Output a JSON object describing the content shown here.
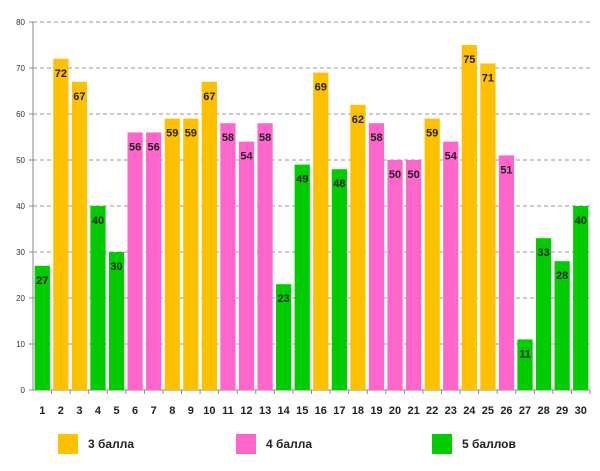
{
  "chart_data": {
    "type": "bar",
    "title": "",
    "xlabel": "",
    "ylabel": "",
    "ylim": [
      0,
      80
    ],
    "yticks": [
      0,
      10,
      20,
      30,
      40,
      50,
      60,
      70,
      80
    ],
    "grid": true,
    "legend_position": "bottom",
    "categories": [
      "1",
      "2",
      "3",
      "4",
      "5",
      "6",
      "7",
      "8",
      "9",
      "10",
      "11",
      "12",
      "13",
      "14",
      "15",
      "16",
      "17",
      "18",
      "19",
      "20",
      "21",
      "22",
      "23",
      "24",
      "25",
      "26",
      "27",
      "28",
      "29",
      "30"
    ],
    "values": [
      27,
      72,
      67,
      40,
      30,
      56,
      56,
      59,
      59,
      67,
      58,
      54,
      58,
      23,
      49,
      69,
      48,
      62,
      58,
      50,
      50,
      59,
      54,
      75,
      71,
      51,
      11,
      33,
      28,
      40
    ],
    "groups": [
      "5 баллов",
      "3 балла",
      "3 балла",
      "5 баллов",
      "5 баллов",
      "4 балла",
      "4 балла",
      "3 балла",
      "3 балла",
      "3 балла",
      "4 балла",
      "4 балла",
      "4 балла",
      "5 баллов",
      "5 баллов",
      "3 балла",
      "5 баллов",
      "3 балла",
      "4 балла",
      "4 балла",
      "4 балла",
      "3 балла",
      "4 балла",
      "3 балла",
      "3 балла",
      "4 балла",
      "5 баллов",
      "5 баллов",
      "5 баллов",
      "5 баллов"
    ],
    "legend": [
      {
        "name": "3 балла",
        "color": "#FFC000"
      },
      {
        "name": "4 балла",
        "color": "#FF66CC"
      },
      {
        "name": "5 баллов",
        "color": "#00CC00"
      }
    ]
  }
}
